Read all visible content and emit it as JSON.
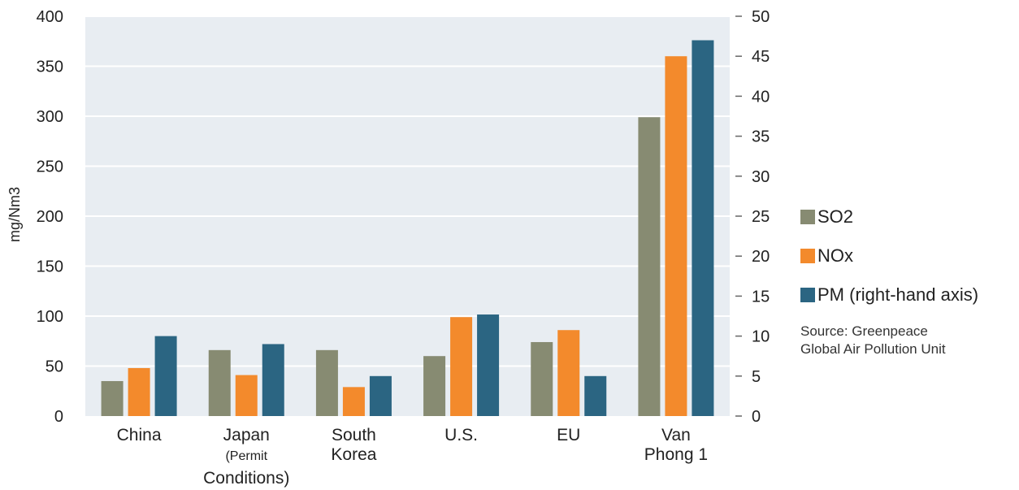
{
  "chart_data": {
    "type": "bar",
    "categories": [
      {
        "line1": "China",
        "line2": "",
        "line3": ""
      },
      {
        "line1": "Japan",
        "line2": "(Permit",
        "line3": "Conditions)"
      },
      {
        "line1": "South",
        "line2": "Korea",
        "line3": ""
      },
      {
        "line1": "U.S.",
        "line2": "",
        "line3": ""
      },
      {
        "line1": "EU",
        "line2": "",
        "line3": ""
      },
      {
        "line1": "Van",
        "line2": "Phong 1",
        "line3": ""
      }
    ],
    "series": [
      {
        "name": "SO2",
        "axis": "left",
        "color": "#878b72",
        "values": [
          35,
          66,
          66,
          60,
          74,
          299
        ]
      },
      {
        "name": "NOx",
        "axis": "left",
        "color": "#f38a2c",
        "values": [
          48,
          41,
          29,
          99,
          86,
          360
        ]
      },
      {
        "name": "PM (right-hand axis)",
        "axis": "right",
        "color": "#2b6582",
        "values": [
          10,
          9,
          5,
          12.7,
          5,
          47
        ]
      }
    ],
    "ylabel": "mg/Nm3",
    "ylim": [
      0,
      400
    ],
    "yticks": [
      0,
      50,
      100,
      150,
      200,
      250,
      300,
      350,
      400
    ],
    "y2lim": [
      0,
      50
    ],
    "y2ticks": [
      0,
      5,
      10,
      15,
      20,
      25,
      30,
      35,
      40,
      45,
      50
    ],
    "grid": true,
    "plot_background": "#e8edf2",
    "legend_position": "right",
    "annotation": {
      "line1": "Source: Greenpeace",
      "line2": "Global Air Pollution Unit"
    }
  }
}
